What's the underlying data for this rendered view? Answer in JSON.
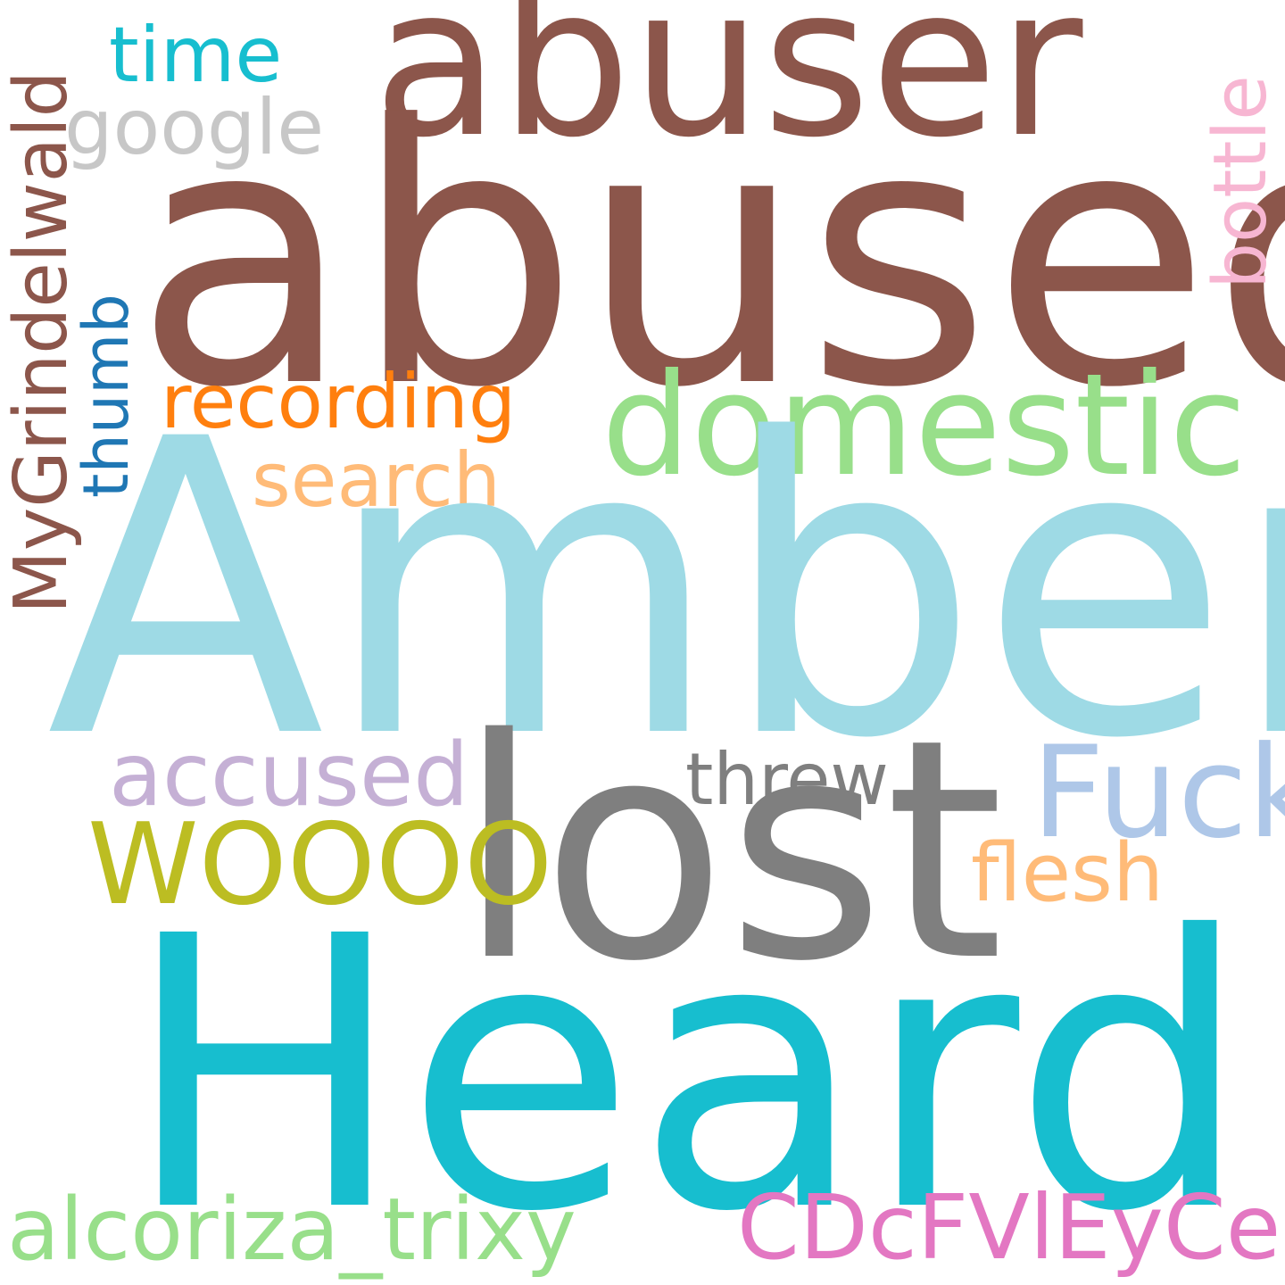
{
  "words": {
    "abused": {
      "text": "abused",
      "color": "#8c564b"
    },
    "abuser": {
      "text": "abuser",
      "color": "#8c564b"
    },
    "amber": {
      "text": "Amber",
      "color": "#9edae5"
    },
    "heard": {
      "text": "Heard",
      "color": "#17becf"
    },
    "lost": {
      "text": "lost",
      "color": "#7f7f7f"
    },
    "domestic": {
      "text": "domestic",
      "color": "#98df8a"
    },
    "mygrindelwald": {
      "text": "MyGrindelwald",
      "color": "#8c564b"
    },
    "thumb": {
      "text": "thumb",
      "color": "#1f77b4"
    },
    "time": {
      "text": "time",
      "color": "#17becf"
    },
    "google": {
      "text": "google",
      "color": "#c7c7c7"
    },
    "bottle": {
      "text": "bottle",
      "color": "#f7b6d2"
    },
    "recording": {
      "text": "recording",
      "color": "#ff7f0e"
    },
    "search": {
      "text": "search",
      "color": "#ffbb78"
    },
    "accused": {
      "text": "accused",
      "color": "#c5b0d5"
    },
    "threw": {
      "text": "threw",
      "color": "#7f7f7f"
    },
    "fuck": {
      "text": "Fuck",
      "color": "#aec7e8"
    },
    "woooo": {
      "text": "WOOOO",
      "color": "#bcbd22"
    },
    "flesh": {
      "text": "flesh",
      "color": "#ffbb78"
    },
    "alcoriza": {
      "text": "alcoriza_trixy",
      "color": "#98df8a"
    },
    "cdcfvleyce": {
      "text": "CDcFVlEyCe",
      "color": "#e377c2"
    }
  }
}
